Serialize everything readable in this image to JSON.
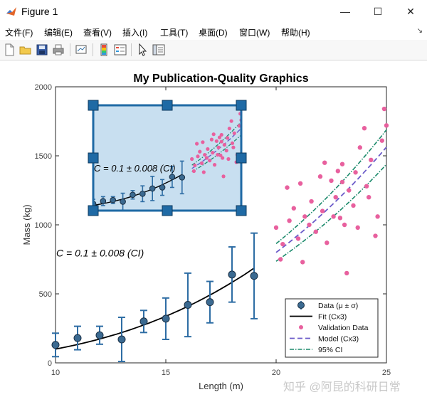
{
  "window": {
    "title": "Figure 1",
    "minimize_glyph": "—",
    "maximize_glyph": "☐",
    "close_glyph": "✕"
  },
  "menu": [
    "文件(F)",
    "编辑(E)",
    "查看(V)",
    "插入(I)",
    "工具(T)",
    "桌面(D)",
    "窗口(W)",
    "帮助(H)"
  ],
  "menu_overflow_glyph": "↘",
  "toolbar": {
    "buttons": [
      "new-figure-icon",
      "open-file-icon",
      "save-icon",
      "print-icon",
      "link-plot-icon",
      "insert-colorbar-icon",
      "insert-legend-icon",
      "pointer-icon",
      "property-inspector-icon"
    ]
  },
  "watermark": "知乎 @阿昆的科研日常",
  "chart_data": {
    "type": "scatter",
    "title": "My Publication-Quality Graphics",
    "xlabel": "Length (m)",
    "ylabel": "Mass (kg)",
    "xlim": [
      10,
      25
    ],
    "ylim": [
      0,
      2000
    ],
    "xticks": [
      10,
      15,
      20,
      25
    ],
    "yticks": [
      0,
      500,
      1000,
      1500,
      2000
    ],
    "grid": false,
    "legend_position": "bottom-right",
    "legend": [
      "Data (μ ± σ)",
      "Fit (Cx3)",
      "Validation Data",
      "Model (Cx3)",
      "95% CI"
    ],
    "annotations": [
      {
        "text": "C = 0.1 ± 0.008 (CI)",
        "x": 10.0,
        "y": 790
      }
    ],
    "colors": {
      "data": "#2e6da4",
      "fit": "#000000",
      "validation": "#e8609e",
      "model": "#6b5bc9",
      "ci": "#1b8a6b",
      "inset_fill": "#c8dff0",
      "inset_edge": "#1f6aa5"
    },
    "series": [
      {
        "name": "Data (μ ± σ)",
        "kind": "errorbar",
        "x": [
          10,
          11,
          12,
          13,
          14,
          15,
          16,
          17,
          18,
          19
        ],
        "y": [
          130,
          180,
          200,
          170,
          300,
          320,
          420,
          440,
          640,
          630
        ],
        "err": [
          85,
          85,
          65,
          160,
          80,
          150,
          230,
          150,
          200,
          310
        ]
      },
      {
        "name": "Fit (Cx3)",
        "kind": "line",
        "x": [
          10,
          11,
          12,
          13,
          14,
          15,
          16,
          17,
          18,
          19
        ],
        "y": [
          100,
          133,
          173,
          220,
          274,
          338,
          410,
          491,
          583,
          686
        ]
      },
      {
        "name": "Validation Data",
        "kind": "scatter",
        "x": [
          20.0,
          20.2,
          20.5,
          20.6,
          20.8,
          21.0,
          21.1,
          21.3,
          21.5,
          21.6,
          21.8,
          22.0,
          22.1,
          22.2,
          22.3,
          22.5,
          22.6,
          22.7,
          22.8,
          23.0,
          23.0,
          23.1,
          23.2,
          23.3,
          23.5,
          23.6,
          23.7,
          23.8,
          24.0,
          24.1,
          24.3,
          24.5,
          24.6,
          24.8,
          24.9,
          25.0,
          20.3,
          21.2,
          22.9,
          24.2
        ],
        "y": [
          980,
          750,
          1270,
          1030,
          1120,
          900,
          1300,
          1060,
          1000,
          1170,
          950,
          1350,
          1100,
          1450,
          870,
          1320,
          1060,
          1200,
          1390,
          1440,
          1310,
          1000,
          650,
          1250,
          1140,
          1380,
          980,
          1560,
          1700,
          1280,
          1470,
          920,
          1060,
          1610,
          1840,
          1720,
          860,
          730,
          1050,
          1200
        ]
      },
      {
        "name": "Model (Cx3)",
        "kind": "line",
        "x": [
          20,
          21,
          22,
          23,
          24,
          25
        ],
        "y": [
          800,
          926,
          1065,
          1217,
          1382,
          1563
        ]
      },
      {
        "name": "95% CI",
        "kind": "line-pair",
        "x": [
          20,
          21,
          22,
          23,
          24,
          25
        ],
        "y_upper": [
          864,
          1000,
          1150,
          1314,
          1493,
          1688
        ],
        "y_lower": [
          736,
          852,
          980,
          1120,
          1271,
          1438
        ]
      }
    ],
    "inset": {
      "xlim": [
        10,
        25
      ],
      "ylim": [
        0,
        2000
      ],
      "annotation": "C = 0.1 ± 0.008 (CI)"
    }
  }
}
